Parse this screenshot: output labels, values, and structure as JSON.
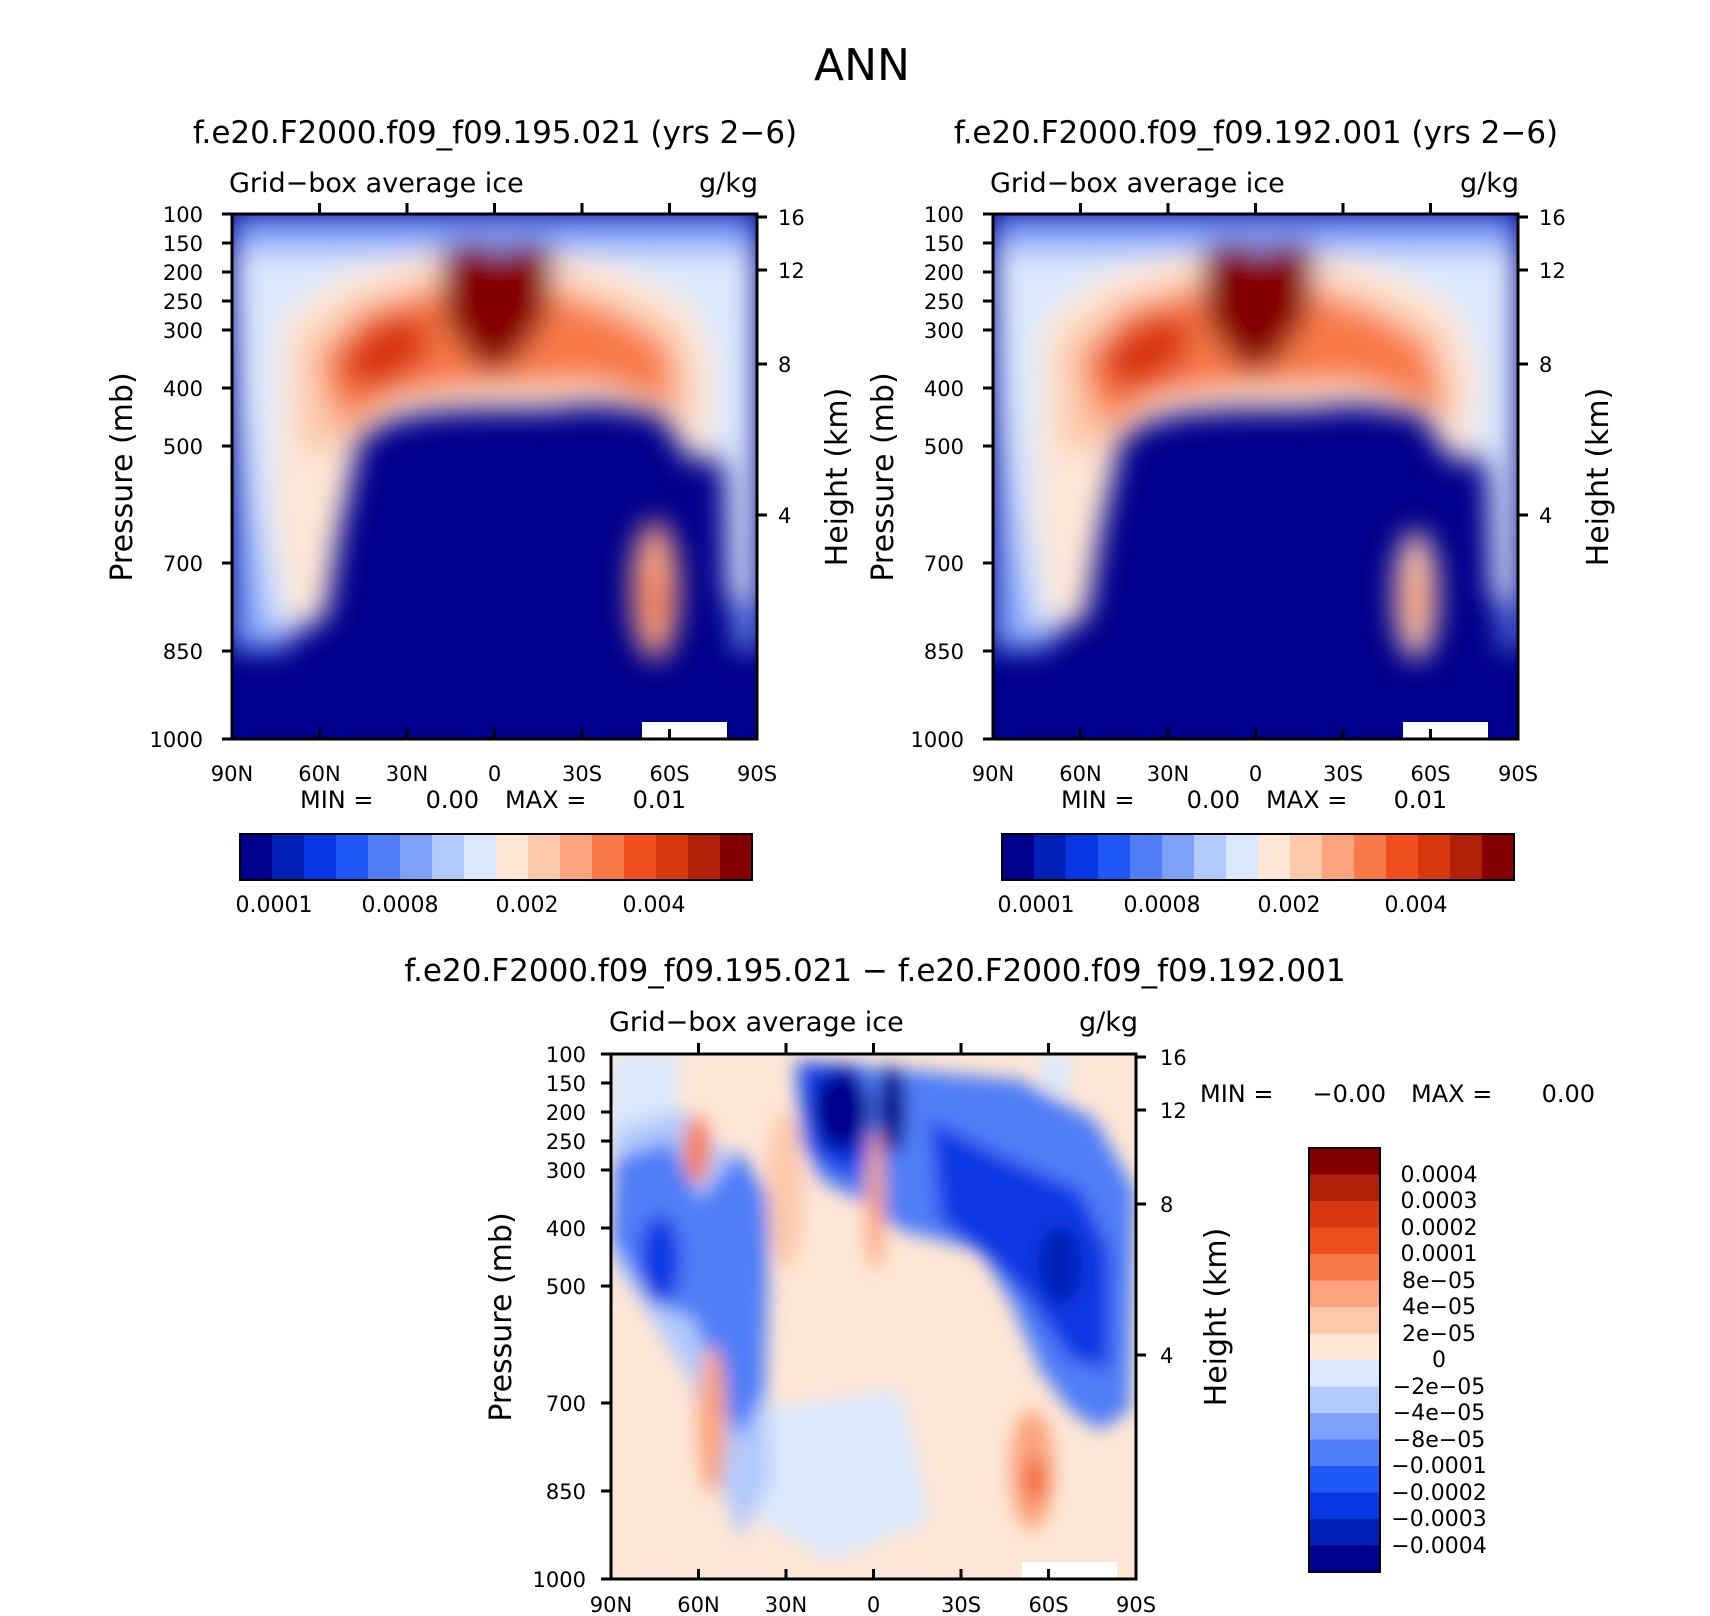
{
  "figure": {
    "title": "ANN"
  },
  "chart_data": [
    {
      "type": "heatmap",
      "id": "panel1",
      "title": "f.e20.F2000.f09_f09.195.021 (yrs 2−6)",
      "variable": "Grid−box average ice",
      "units": "g/kg",
      "xlabel": "",
      "ylabel": "Pressure (mb)",
      "ylabel_right": "Height (km)",
      "xticks": [
        "90N",
        "60N",
        "30N",
        "0",
        "30S",
        "60S",
        "90S"
      ],
      "yticks": [
        "100",
        "150",
        "200",
        "250",
        "300",
        "400",
        "500",
        "700",
        "850",
        "1000"
      ],
      "yticks_right": [
        "16",
        "12",
        "8",
        "4"
      ],
      "min_label": "MIN =",
      "min_value": "0.00",
      "max_label": "MAX =",
      "max_value": "0.01",
      "colorbar_labels": [
        "0.0001",
        "0.0008",
        "0.002",
        "0.004"
      ],
      "colors": [
        "#00008c",
        "#0020b8",
        "#0737e3",
        "#1f58f5",
        "#4f7ef7",
        "#7da0f9",
        "#b2c9fb",
        "#d9e8fd",
        "#fde6d5",
        "#fcc8aa",
        "#fba37c",
        "#f87a48",
        "#f04e1c",
        "#d8360c",
        "#b02008",
        "#840000"
      ]
    },
    {
      "type": "heatmap",
      "id": "panel2",
      "title": "f.e20.F2000.f09_f09.192.001 (yrs 2−6)",
      "variable": "Grid−box average ice",
      "units": "g/kg",
      "xlabel": "",
      "ylabel": "Pressure (mb)",
      "ylabel_right": "Height (km)",
      "xticks": [
        "90N",
        "60N",
        "30N",
        "0",
        "30S",
        "60S",
        "90S"
      ],
      "yticks": [
        "100",
        "150",
        "200",
        "250",
        "300",
        "400",
        "500",
        "700",
        "850",
        "1000"
      ],
      "yticks_right": [
        "16",
        "12",
        "8",
        "4"
      ],
      "min_label": "MIN =",
      "min_value": "0.00",
      "max_label": "MAX =",
      "max_value": "0.01",
      "colorbar_labels": [
        "0.0001",
        "0.0008",
        "0.002",
        "0.004"
      ],
      "colors": [
        "#00008c",
        "#0020b8",
        "#0737e3",
        "#1f58f5",
        "#4f7ef7",
        "#7da0f9",
        "#b2c9fb",
        "#d9e8fd",
        "#fde6d5",
        "#fcc8aa",
        "#fba37c",
        "#f87a48",
        "#f04e1c",
        "#d8360c",
        "#b02008",
        "#840000"
      ]
    },
    {
      "type": "heatmap",
      "id": "panel3",
      "title": "f.e20.F2000.f09_f09.195.021 − f.e20.F2000.f09_f09.192.001",
      "variable": "Grid−box average ice",
      "units": "g/kg",
      "xlabel": "",
      "ylabel": "Pressure (mb)",
      "ylabel_right": "Height (km)",
      "xticks": [
        "90N",
        "60N",
        "30N",
        "0",
        "30S",
        "60S",
        "90S"
      ],
      "yticks": [
        "100",
        "150",
        "200",
        "250",
        "300",
        "400",
        "500",
        "700",
        "850",
        "1000"
      ],
      "yticks_right": [
        "16",
        "12",
        "8",
        "4"
      ],
      "min_label": "MIN =",
      "min_value": "−0.00",
      "max_label": "MAX =",
      "max_value": "0.00",
      "colorbar_labels": [
        "0.0004",
        "0.0003",
        "0.0002",
        "0.0001",
        "8e−05",
        "4e−05",
        "2e−05",
        "0",
        "−2e−05",
        "−4e−05",
        "−8e−05",
        "−0.0001",
        "−0.0002",
        "−0.0003",
        "−0.0004"
      ],
      "colors": [
        "#840000",
        "#b02008",
        "#d8360c",
        "#f04e1c",
        "#f87a48",
        "#fba37c",
        "#fcc8aa",
        "#fde6d5",
        "#d9e8fd",
        "#b2c9fb",
        "#7da0f9",
        "#4f7ef7",
        "#1f58f5",
        "#0737e3",
        "#0020b8",
        "#00008c"
      ]
    }
  ]
}
